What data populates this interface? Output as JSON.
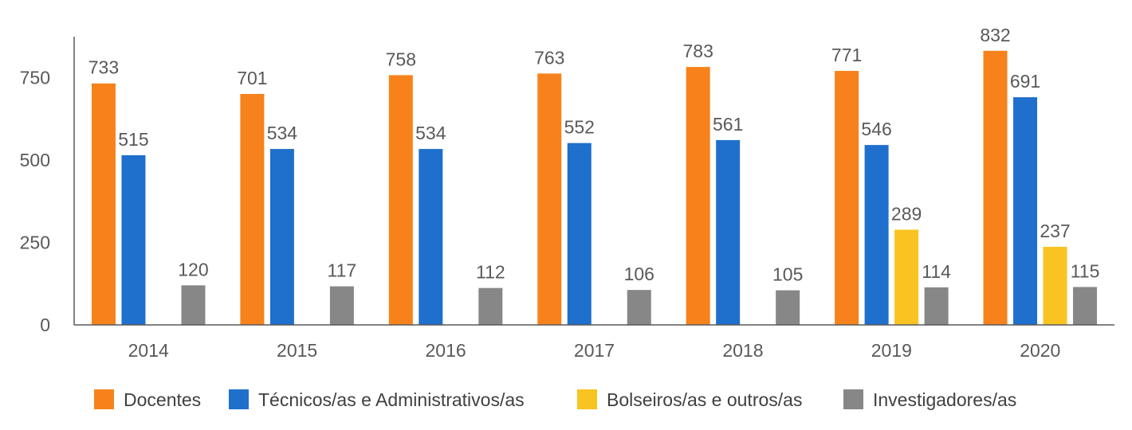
{
  "chart_data": {
    "type": "bar",
    "title": "",
    "xlabel": "",
    "ylabel": "",
    "categories": [
      "2014",
      "2015",
      "2016",
      "2017",
      "2018",
      "2019",
      "2020"
    ],
    "series": [
      {
        "name": "Docentes",
        "color": "#F7821B",
        "values": [
          733,
          701,
          758,
          763,
          783,
          771,
          832
        ]
      },
      {
        "name": "Técnicos/as e Administrativos/as",
        "color": "#1F6FCC",
        "values": [
          515,
          534,
          534,
          552,
          561,
          546,
          691
        ]
      },
      {
        "name": "Bolseiros/as e outros/as",
        "color": "#F9C321",
        "values": [
          null,
          null,
          null,
          null,
          null,
          289,
          237
        ]
      },
      {
        "name": "Investigadores/as",
        "color": "#878787",
        "values": [
          120,
          117,
          112,
          106,
          105,
          114,
          115
        ]
      }
    ],
    "ylim": [
      0,
      875
    ],
    "yticks": [
      0,
      250,
      500,
      750
    ],
    "grid": false,
    "legend_position": "bottom"
  }
}
